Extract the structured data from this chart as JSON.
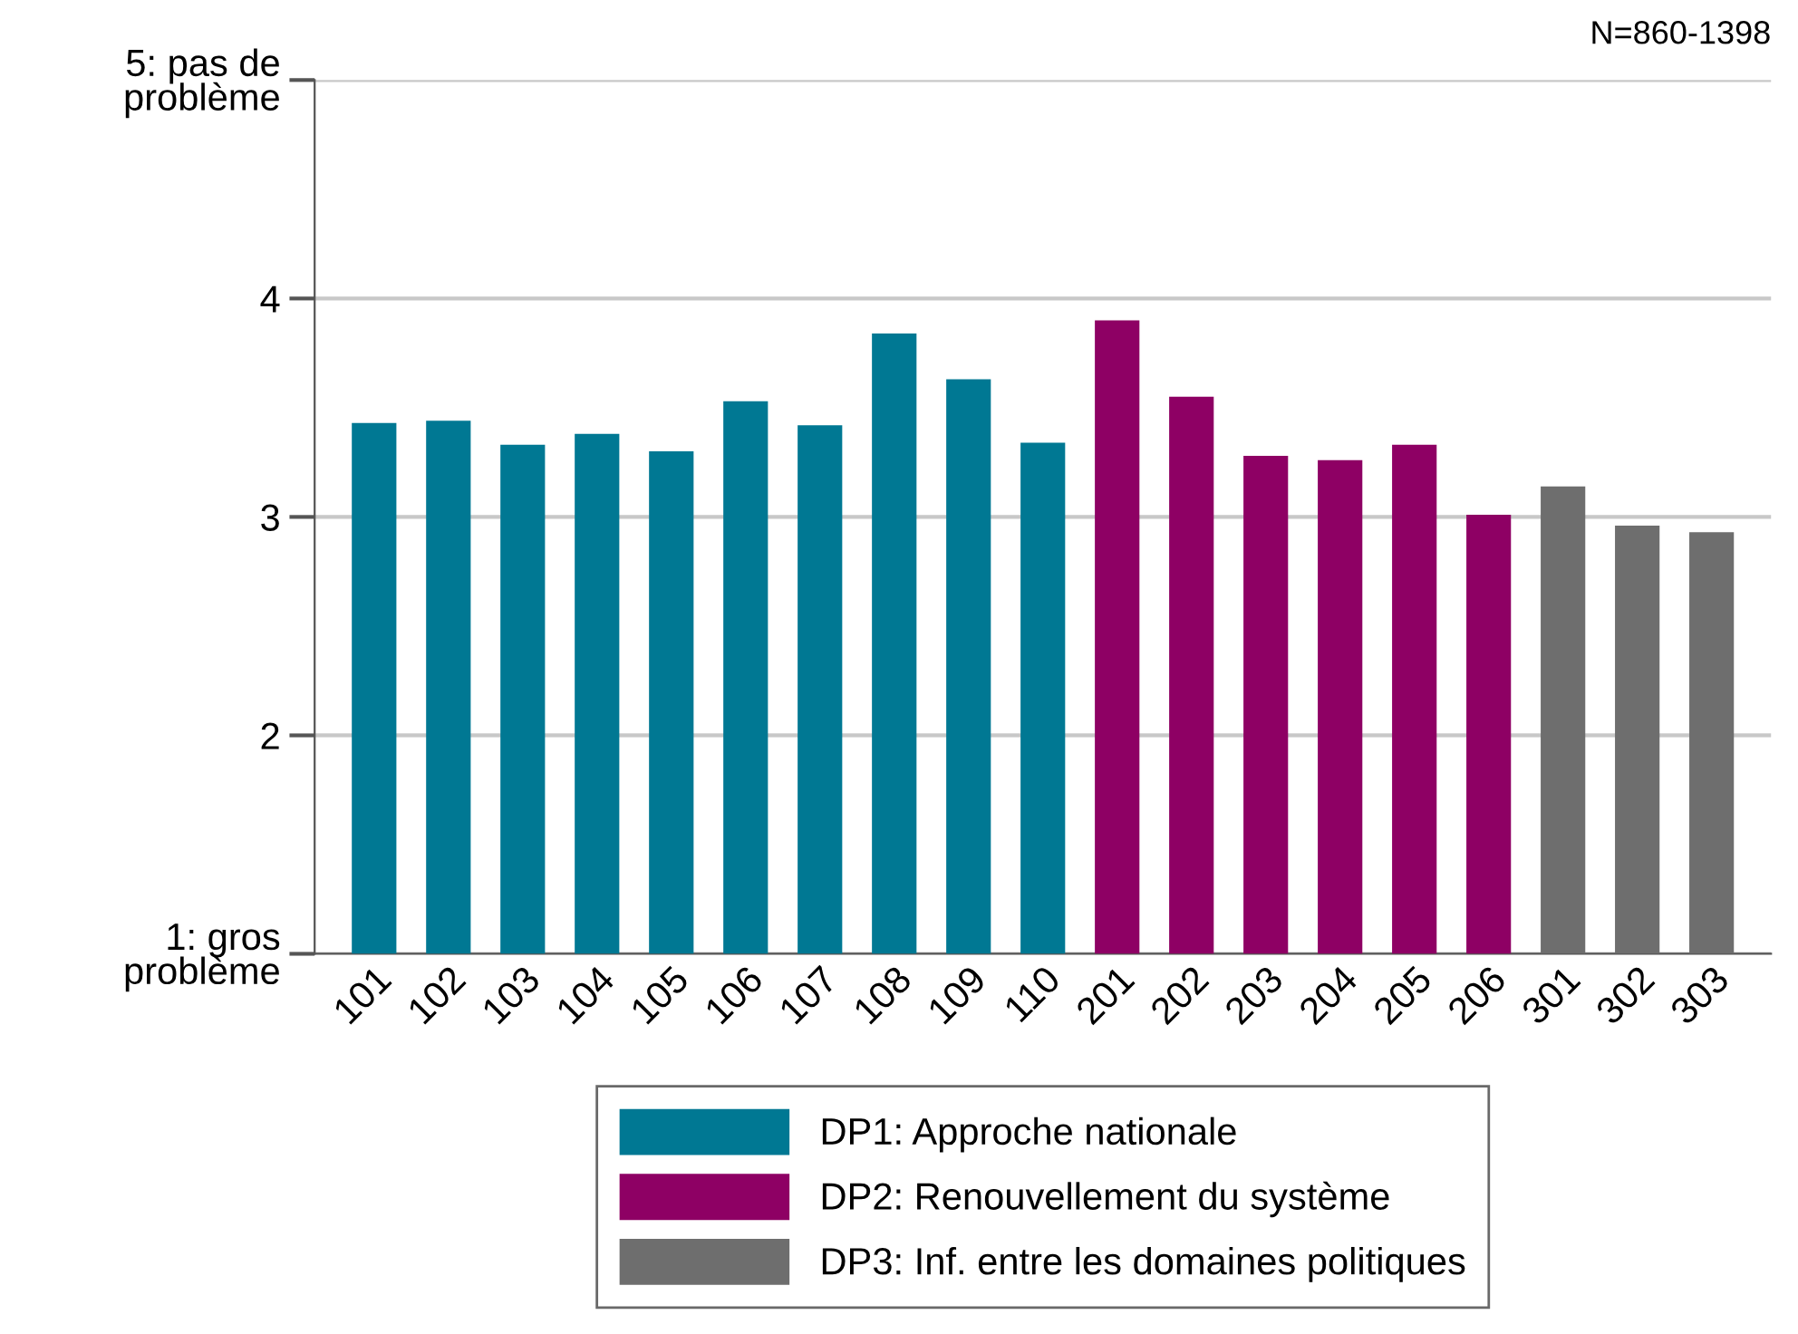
{
  "chart_data": {
    "type": "bar",
    "categories": [
      "101",
      "102",
      "103",
      "104",
      "105",
      "106",
      "107",
      "108",
      "109",
      "110",
      "201",
      "202",
      "203",
      "204",
      "205",
      "206",
      "301",
      "302",
      "303"
    ],
    "series": [
      {
        "name": "DP1: Approche nationale",
        "color": "#007893",
        "values": [
          3.43,
          3.44,
          3.33,
          3.38,
          3.3,
          3.53,
          3.42,
          3.84,
          3.63,
          3.34,
          null,
          null,
          null,
          null,
          null,
          null,
          null,
          null,
          null
        ]
      },
      {
        "name": "DP2: Renouvellement du système",
        "color": "#8e0064",
        "values": [
          null,
          null,
          null,
          null,
          null,
          null,
          null,
          null,
          null,
          null,
          3.9,
          3.55,
          3.28,
          3.26,
          3.33,
          3.01,
          null,
          null,
          null
        ]
      },
      {
        "name": "DP3: Inf. entre les domaines politiques",
        "color": "#6e6e6e",
        "values": [
          null,
          null,
          null,
          null,
          null,
          null,
          null,
          null,
          null,
          null,
          null,
          null,
          null,
          null,
          null,
          null,
          3.14,
          2.96,
          2.93
        ]
      }
    ],
    "ylim": [
      1,
      5
    ],
    "yticks": [
      {
        "value": 1,
        "label": "1: gros\nproblème"
      },
      2,
      3,
      4,
      {
        "value": 5,
        "label": "5: pas de\nproblème"
      }
    ],
    "grid": "y",
    "legend": "bottom",
    "annotations": [
      "N=860-1398"
    ]
  }
}
